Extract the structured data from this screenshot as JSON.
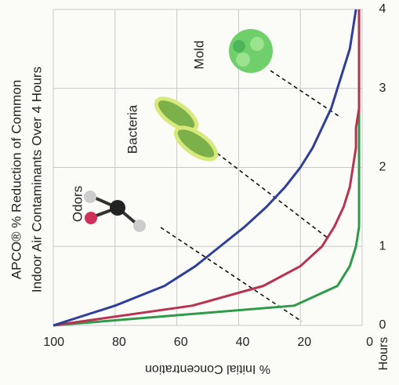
{
  "chart_data": {
    "type": "line",
    "title": [
      "APCO® % Reduction of Common",
      "Indoor Air Contaminants Over 4 Hours"
    ],
    "x_label": "Hours",
    "y_label": "% Initial Concentration",
    "x": [
      0,
      0.25,
      0.5,
      0.75,
      1,
      1.25,
      1.5,
      1.75,
      2,
      2.25,
      2.5,
      2.75,
      3,
      3.25,
      3.5,
      3.75,
      4
    ],
    "series": [
      {
        "name": "Odors",
        "color": "#2e9a4a",
        "values": [
          100,
          22,
          8,
          4,
          2,
          1,
          1,
          1,
          1,
          1,
          1,
          1,
          1,
          1,
          1,
          1,
          1
        ]
      },
      {
        "name": "Bacteria",
        "color": "#b8334f",
        "values": [
          100,
          55,
          32,
          20,
          13,
          9,
          6,
          4,
          3,
          2,
          2,
          1,
          1,
          1,
          1,
          1,
          1
        ]
      },
      {
        "name": "Mold",
        "color": "#2d3f9a",
        "values": [
          100,
          80,
          64,
          54,
          46,
          38,
          31,
          25,
          20,
          16,
          13,
          10,
          8,
          6,
          4,
          3,
          2
        ]
      }
    ],
    "xlim": [
      0,
      4
    ],
    "xticks": [
      0,
      1,
      2,
      3,
      4
    ],
    "ylim": [
      0,
      100
    ],
    "yticks": [
      0,
      20,
      40,
      60,
      80,
      100
    ],
    "grid": true
  }
}
